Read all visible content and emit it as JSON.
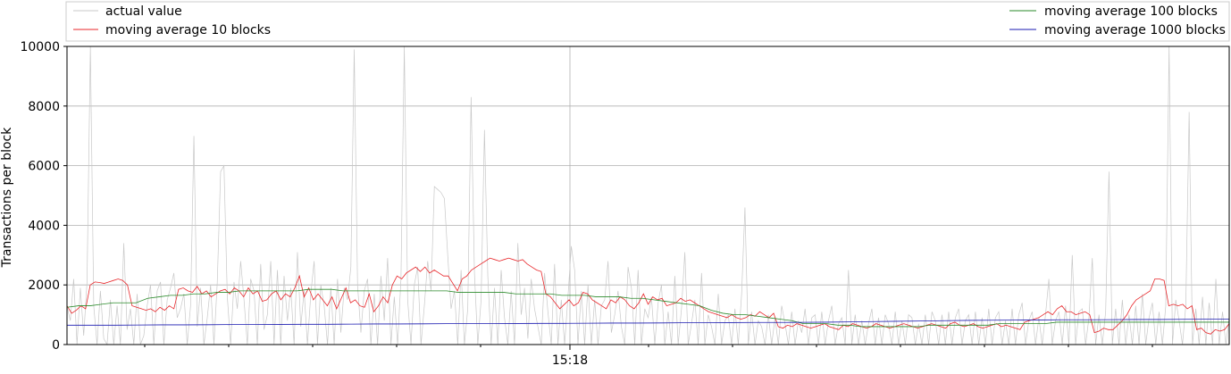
{
  "chart_data": {
    "type": "line",
    "title": "",
    "xlabel": "",
    "ylabel": "Transactions per block",
    "ylim": [
      0,
      10000
    ],
    "y_ticks": [
      0,
      2000,
      4000,
      6000,
      8000,
      10000
    ],
    "x_tick_label": "15:18",
    "x_ticks_minor_count": 14,
    "n_blocks": 600,
    "grid": true,
    "legend": {
      "placement": "top"
    },
    "series": [
      {
        "name": "actual value",
        "color": "#c8c8c8",
        "values": [
          1300,
          800,
          2200,
          0,
          1900,
          300,
          2100,
          10000,
          1300,
          0,
          1800,
          200,
          0,
          1500,
          0,
          1300,
          0,
          3400,
          500,
          1200,
          0,
          1700,
          0,
          300,
          1300,
          2000,
          0,
          1800,
          2100,
          0,
          1500,
          1900,
          2400,
          900,
          1200,
          1700,
          0,
          1300,
          7000,
          600,
          1900,
          0,
          900,
          2000,
          0,
          2100,
          5800,
          6000,
          1600,
          0,
          2100,
          1200,
          2800,
          1500,
          0,
          2200,
          1800,
          0,
          2700,
          500,
          1000,
          2800,
          0,
          2500,
          0,
          2300,
          800,
          1900,
          0,
          3100,
          600,
          1800,
          0,
          1700,
          2800,
          0,
          2000,
          1300,
          0,
          1900,
          0,
          2200,
          400,
          1900,
          1500,
          2600,
          9900,
          2000,
          400,
          1800,
          2200,
          0,
          1700,
          0,
          2300,
          800,
          2900,
          0,
          1600,
          0,
          2200,
          10000,
          1500,
          0,
          2000,
          2600,
          0,
          1300,
          2800,
          1800,
          5300,
          5200,
          5100,
          4900,
          3000,
          1200,
          1800,
          0,
          2500,
          0,
          1200,
          8300,
          2400,
          0,
          1500,
          7200,
          2300,
          0,
          1900,
          0,
          2500,
          900,
          0,
          1800,
          0,
          3400,
          1000,
          1900,
          200,
          2200,
          1200,
          600,
          0,
          2400,
          1100,
          0,
          2700,
          0,
          1500,
          0,
          1600,
          3300,
          2500,
          0,
          1800,
          0,
          2000,
          0,
          1500,
          0,
          1300,
          1500,
          2800,
          400,
          1000,
          1800,
          600,
          0,
          2600,
          1900,
          0,
          2500,
          0,
          1200,
          900,
          1600,
          0,
          1400,
          2000,
          0,
          1100,
          0,
          2300,
          0,
          1200,
          3100,
          0,
          700,
          1500,
          0,
          2400,
          0,
          1000,
          600,
          0,
          1700,
          0,
          800,
          1000,
          0,
          1200,
          0,
          1700,
          4600,
          0,
          1100,
          0,
          800,
          600,
          0,
          1000,
          0,
          900,
          0,
          1300,
          700,
          0,
          1100,
          0,
          800,
          400,
          1200,
          0,
          900,
          1000,
          0,
          1100,
          0,
          800,
          1300,
          0,
          700,
          900,
          0,
          2500,
          0,
          1000,
          0,
          800,
          0,
          700,
          1200,
          0,
          900,
          0,
          1000,
          700,
          0,
          1100,
          0,
          800,
          0,
          1000,
          900,
          0,
          700,
          0,
          1000,
          0,
          1100,
          800,
          0,
          1000,
          0,
          1100,
          0,
          900,
          1200,
          0,
          800,
          1000,
          0,
          1100,
          0,
          900,
          0,
          1200,
          0,
          900,
          1100,
          0,
          800,
          0,
          1200,
          0,
          1000,
          1400,
          0,
          800,
          1100,
          0,
          900,
          0,
          1000,
          2200,
          0,
          800,
          1100,
          0,
          1300,
          0,
          3000,
          0,
          1100,
          1200,
          0,
          900,
          2900,
          0,
          1000,
          0,
          1100,
          5800,
          0,
          1200,
          0,
          1500,
          0,
          1000,
          0,
          1300,
          0,
          1700,
          0,
          900,
          1400,
          0,
          1100,
          0,
          1300,
          10000,
          0,
          1500,
          800,
          0,
          1300,
          7800,
          0,
          1200,
          0,
          1600,
          0,
          1400,
          0,
          2200,
          0,
          1100,
          0,
          900
        ]
      },
      {
        "name": "moving average 10 blocks",
        "color": "#e8262a",
        "values": [
          1300,
          1050,
          1150,
          1300,
          1200,
          2000,
          2100,
          2080,
          2050,
          2100,
          2150,
          2200,
          2150,
          2000,
          1300,
          1250,
          1200,
          1150,
          1200,
          1100,
          1250,
          1150,
          1300,
          1200,
          1850,
          1900,
          1800,
          1750,
          1950,
          1700,
          1800,
          1600,
          1700,
          1800,
          1850,
          1700,
          1900,
          1800,
          1600,
          1900,
          1700,
          1800,
          1450,
          1500,
          1700,
          1800,
          1500,
          1700,
          1600,
          1900,
          2300,
          1600,
          1900,
          1500,
          1700,
          1500,
          1300,
          1600,
          1200,
          1550,
          1900,
          1400,
          1500,
          1300,
          1250,
          1700,
          1100,
          1300,
          1600,
          1400,
          2000,
          2300,
          2200,
          2400,
          2500,
          2600,
          2450,
          2600,
          2400,
          2500,
          2400,
          2300,
          2300,
          2050,
          1800,
          2200,
          2300,
          2500,
          2600,
          2700,
          2800,
          2900,
          2850,
          2800,
          2850,
          2900,
          2850,
          2800,
          2850,
          2700,
          2600,
          2500,
          2450,
          1700,
          1600,
          1400,
          1200,
          1350,
          1500,
          1300,
          1400,
          1750,
          1700,
          1500,
          1400,
          1300,
          1200,
          1500,
          1400,
          1600,
          1500,
          1300,
          1200,
          1400,
          1700,
          1350,
          1600,
          1500,
          1550,
          1300,
          1350,
          1400,
          1550,
          1450,
          1500,
          1400,
          1300,
          1200,
          1100,
          1050,
          1000,
          950,
          900,
          1000,
          900,
          850,
          900,
          1000,
          950,
          1100,
          1000,
          900,
          1050,
          600,
          550,
          650,
          600,
          700,
          650,
          600,
          550,
          600,
          650,
          700,
          600,
          550,
          500,
          650,
          600,
          700,
          650,
          600,
          550,
          600,
          700,
          650,
          600,
          550,
          600,
          650,
          700,
          650,
          600,
          550,
          600,
          650,
          700,
          650,
          600,
          550,
          700,
          750,
          650,
          600,
          650,
          700,
          600,
          550,
          600,
          650,
          700,
          600,
          650,
          600,
          550,
          500,
          750,
          800,
          850,
          900,
          1000,
          1100,
          1000,
          1200,
          1300,
          1100,
          1100,
          1000,
          1050,
          1100,
          1000,
          400,
          450,
          550,
          500,
          500,
          650,
          800,
          1000,
          1300,
          1500,
          1600,
          1700,
          1800,
          2200,
          2200,
          2150,
          1300,
          1350,
          1300,
          1350,
          1200,
          1300,
          500,
          550,
          400,
          350,
          500,
          450,
          500,
          700
        ]
      },
      {
        "name": "moving average 100 blocks",
        "color": "#2a8a2a",
        "values": [
          1250,
          1300,
          1300,
          1350,
          1400,
          1400,
          1400,
          1550,
          1600,
          1650,
          1650,
          1700,
          1700,
          1750,
          1750,
          1800,
          1800,
          1800,
          1800,
          1800,
          1800,
          1850,
          1850,
          1850,
          1800,
          1800,
          1800,
          1800,
          1800,
          1800,
          1800,
          1800,
          1800,
          1800,
          1750,
          1750,
          1750,
          1750,
          1750,
          1700,
          1700,
          1700,
          1700,
          1650,
          1650,
          1650,
          1600,
          1600,
          1600,
          1550,
          1550,
          1500,
          1450,
          1400,
          1350,
          1300,
          1150,
          1050,
          1000,
          1000,
          950,
          900,
          850,
          800,
          700,
          700,
          700,
          650,
          650,
          600,
          600,
          600,
          600,
          600,
          600,
          650,
          650,
          650,
          650,
          650,
          650,
          700,
          700,
          700,
          700,
          700,
          750,
          750,
          750,
          750,
          750,
          750,
          750,
          750,
          750,
          750,
          750,
          750,
          750,
          750,
          750,
          750
        ]
      },
      {
        "name": "moving average 1000 blocks",
        "color": "#1a1ab0",
        "values": [
          650,
          650,
          650,
          655,
          660,
          660,
          665,
          670,
          670,
          675,
          680,
          680,
          685,
          690,
          690,
          695,
          700,
          700,
          700,
          705,
          710,
          710,
          715,
          720,
          720,
          725,
          730,
          730,
          735,
          740,
          740,
          745,
          750,
          760,
          770,
          780,
          790,
          800,
          810,
          815,
          820,
          825,
          830,
          830,
          835,
          840,
          840,
          845,
          850,
          850
        ]
      }
    ]
  }
}
